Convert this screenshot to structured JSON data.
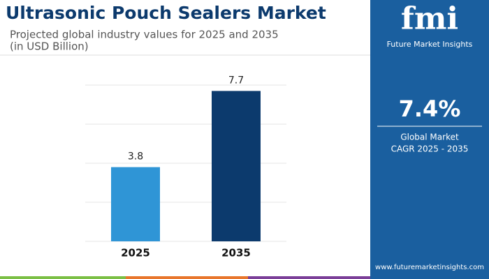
{
  "chart_data": {
    "type": "bar",
    "title": "Ultrasonic Pouch Sealers Market",
    "subtitle": [
      "Projected global industry values for 2025 and 2035",
      "(in USD Billion)"
    ],
    "categories": [
      "2025",
      "2035"
    ],
    "values": [
      3.8,
      7.7
    ],
    "colors": [
      "#2f95d6",
      "#0c3a6d"
    ],
    "ylim": [
      0,
      8
    ],
    "yticks": [
      0,
      2,
      4,
      6,
      8
    ],
    "ytick_labels": false,
    "grid": true
  },
  "sidebar": {
    "logo": "fmi",
    "brand": "Future Market Insights",
    "cagr": "7.4%",
    "cagr_label": [
      "Global Market",
      "CAGR 2025 - 2035"
    ],
    "website": "www.futuremarketinsights.com"
  }
}
